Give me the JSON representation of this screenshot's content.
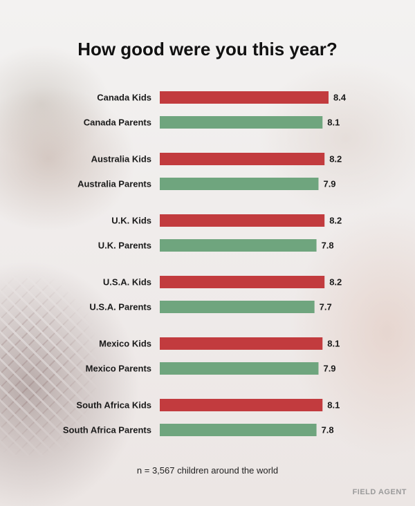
{
  "title": "How good were you this year?",
  "note": "n = 3,567 children around the world",
  "brand": "FIELD AGENT",
  "colors": {
    "kids": "#c23b3e",
    "parents": "#6fa57e"
  },
  "chart_data": {
    "type": "bar",
    "orientation": "horizontal",
    "title": "How good were you this year?",
    "categories": [
      "Canada Kids",
      "Canada Parents",
      "Australia Kids",
      "Australia Parents",
      "U.K. Kids",
      "U.K. Parents",
      "U.S.A. Kids",
      "U.S.A. Parents",
      "Mexico Kids",
      "Mexico Parents",
      "South Africa Kids",
      "South Africa Parents"
    ],
    "values": [
      8.4,
      8.1,
      8.2,
      7.9,
      8.2,
      7.8,
      8.2,
      7.7,
      8.1,
      7.9,
      8.1,
      7.8
    ],
    "value_labels": [
      "8.4",
      "8.1",
      "8.2",
      "7.9",
      "8.2",
      "7.8",
      "8.2",
      "7.7",
      "8.1",
      "7.9",
      "8.1",
      "7.8"
    ],
    "groups": [
      "kids",
      "parents",
      "kids",
      "parents",
      "kids",
      "parents",
      "kids",
      "parents",
      "kids",
      "parents",
      "kids",
      "parents"
    ],
    "xlim": [
      0,
      8.4
    ],
    "grid": false,
    "legend": "none"
  }
}
